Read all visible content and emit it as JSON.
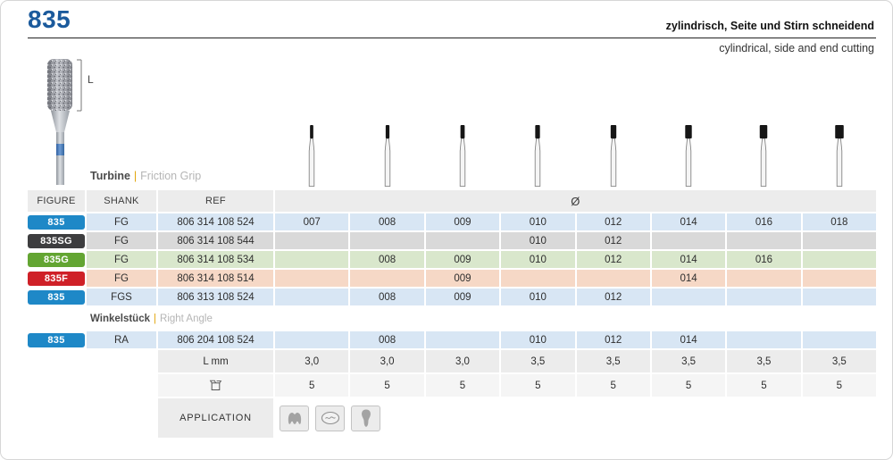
{
  "header": {
    "figure_number": "835",
    "title_de": "zylindrisch, Seite und Stirn schneidend",
    "title_en": "cylindrical, side and end cutting"
  },
  "bur_image": {
    "length_label": "L"
  },
  "sections": [
    {
      "bold": "Turbine",
      "pipe": "|",
      "light": "Friction Grip"
    },
    {
      "bold": "Winkelstück",
      "pipe": "|",
      "light": "Right Angle"
    }
  ],
  "table": {
    "headers": {
      "figure": "FIGURE",
      "shank": "SHANK",
      "ref": "REF",
      "diameter_symbol": "Ø"
    },
    "diameters": [
      "007",
      "008",
      "009",
      "010",
      "012",
      "014",
      "016",
      "018"
    ],
    "turbine_rows": [
      {
        "figure": "835",
        "shank": "FG",
        "ref": "806 314 108 524",
        "sizes": [
          "007",
          "008",
          "009",
          "010",
          "012",
          "014",
          "016",
          "018"
        ],
        "badge_color": "#1e88c7",
        "row_color": "#d8e6f4"
      },
      {
        "figure": "835SG",
        "shank": "FG",
        "ref": "806 314 108 544",
        "sizes": [
          "010",
          "012"
        ],
        "badge_color": "#3d3d3f",
        "row_color": "#d9d9d9"
      },
      {
        "figure": "835G",
        "shank": "FG",
        "ref": "806 314 108 534",
        "sizes": [
          "008",
          "009",
          "010",
          "012",
          "014",
          "016"
        ],
        "badge_color": "#63a532",
        "row_color": "#d9e7cc"
      },
      {
        "figure": "835F",
        "shank": "FG",
        "ref": "806 314 108 514",
        "sizes": [
          "009",
          "014"
        ],
        "badge_color": "#cf2027",
        "row_color": "#f6d8c6"
      },
      {
        "figure": "835",
        "shank": "FGS",
        "ref": "806 313 108 524",
        "sizes": [
          "008",
          "009",
          "010",
          "012"
        ],
        "badge_color": "#1e88c7",
        "row_color": "#d8e6f4"
      }
    ],
    "right_angle_rows": [
      {
        "figure": "835",
        "shank": "RA",
        "ref": "806 204 108 524",
        "sizes": [
          "008",
          "010",
          "012",
          "014"
        ],
        "badge_color": "#1e88c7",
        "row_color": "#d8e6f4"
      }
    ],
    "length_row": {
      "label": "L mm",
      "values": [
        "3,0",
        "3,0",
        "3,0",
        "3,5",
        "3,5",
        "3,5",
        "3,5",
        "3,5"
      ]
    },
    "pack_row": {
      "icon": "package-icon",
      "values": [
        "5",
        "5",
        "5",
        "5",
        "5",
        "5",
        "5",
        "5"
      ]
    },
    "application_row": {
      "label": "APPLICATION",
      "icons": [
        "molar-crown-icon",
        "occlusal-surface-icon",
        "tooth-silhouette-icon"
      ]
    }
  },
  "colors": {
    "accent_blue": "#1b5a9c",
    "badge_blue": "#1e88c7",
    "badge_dark": "#3d3d3f",
    "badge_green": "#63a532",
    "badge_red": "#cf2027",
    "row_blue": "#d8e6f4",
    "row_gray": "#d9d9d9",
    "row_green": "#d9e7cc",
    "row_salmon": "#f6d8c6",
    "header_gray": "#ececec",
    "pipe_yellow": "#e2a60c"
  }
}
